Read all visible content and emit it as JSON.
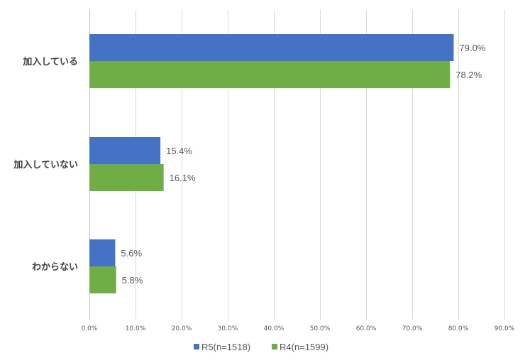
{
  "chart_data": {
    "type": "bar",
    "orientation": "horizontal",
    "categories": [
      "加入している",
      "加入していない",
      "わからない"
    ],
    "series": [
      {
        "name": "R5(n=1518)",
        "values": [
          79.0,
          15.4,
          5.6
        ],
        "labels": [
          "79.0%",
          "15.4%",
          "5.6%"
        ],
        "color": "#4472c4"
      },
      {
        "name": "R4(n=1599)",
        "values": [
          78.2,
          16.1,
          5.8
        ],
        "labels": [
          "78.2%",
          "16.1%",
          "5.8%"
        ],
        "color": "#70ad47"
      }
    ],
    "xlim": [
      0,
      90
    ],
    "ticks": [
      0,
      10,
      20,
      30,
      40,
      50,
      60,
      70,
      80,
      90
    ],
    "tick_labels": [
      "0.0%",
      "10.0%",
      "20.0%",
      "30.0%",
      "40.0%",
      "50.0%",
      "60.0%",
      "70.0%",
      "80.0%",
      "90.0%"
    ],
    "grid": true,
    "legend_position": "bottom",
    "title": "",
    "xlabel": "",
    "ylabel": ""
  }
}
